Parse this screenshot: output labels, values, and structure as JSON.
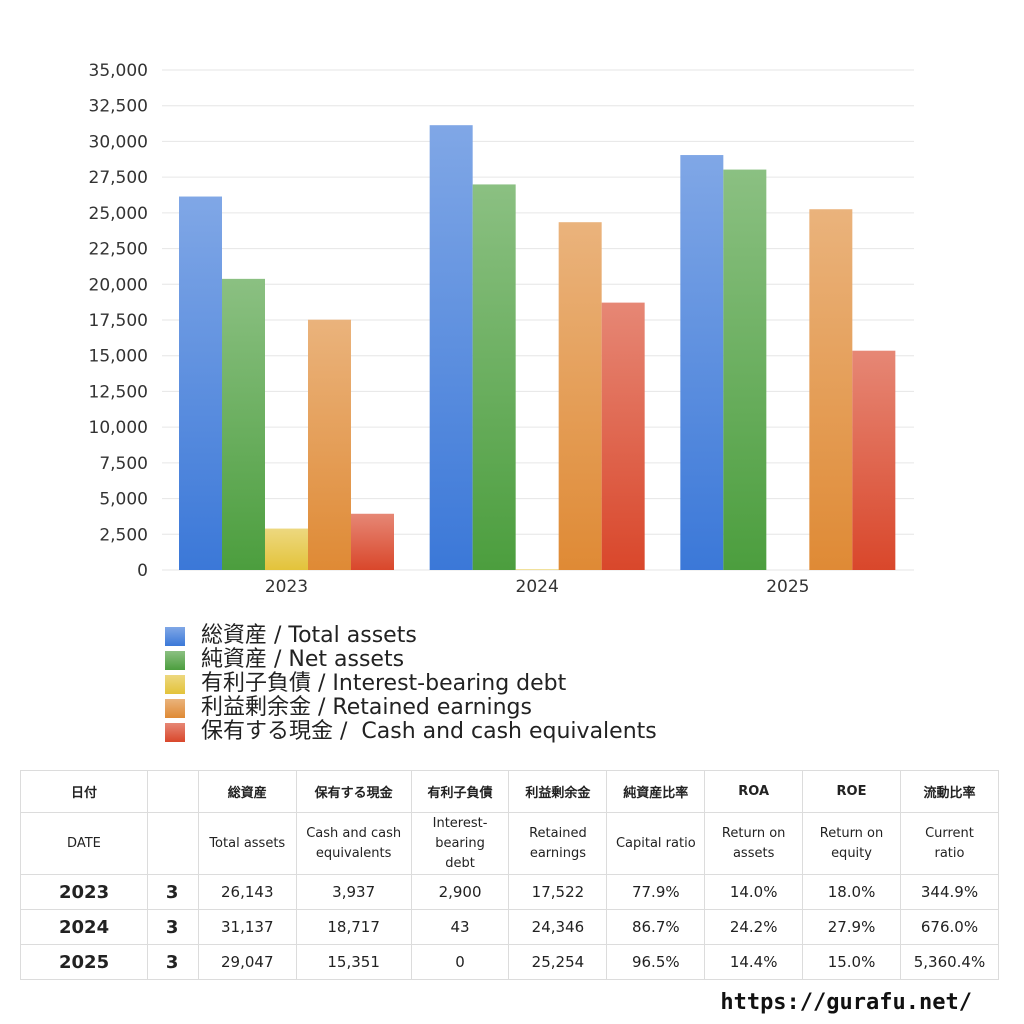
{
  "chart_data": {
    "type": "bar",
    "categories": [
      "2023",
      "2024",
      "2025"
    ],
    "series": [
      {
        "name": "総資産 / Total assets",
        "values": [
          26143,
          31137,
          29047
        ],
        "color": "#3b78d8"
      },
      {
        "name": "純資産 / Net assets",
        "values": [
          20380,
          26990,
          28030
        ],
        "color": "#4c9e3e"
      },
      {
        "name": "有利子負債 / Interest-bearing debt",
        "values": [
          2900,
          43,
          0
        ],
        "color": "#e3c33a"
      },
      {
        "name": "利益剰余金 / Retained earnings",
        "values": [
          17522,
          24346,
          25254
        ],
        "color": "#df8a35"
      },
      {
        "name": "保有する現金 /  Cash and cash equivalents",
        "values": [
          3937,
          18717,
          15351
        ],
        "color": "#d9472b"
      }
    ],
    "yticks": [
      "0",
      "2,500",
      "5,000",
      "7,500",
      "10,000",
      "12,500",
      "15,000",
      "17,500",
      "20,000",
      "22,500",
      "25,000",
      "27,500",
      "30,000",
      "32,500",
      "35,000"
    ],
    "ylim": [
      0,
      35000
    ],
    "grid": true,
    "legend_position": "bottom"
  },
  "table": {
    "header_jp": [
      "日付",
      "",
      "総資産",
      "保有する現金",
      "有利子負債",
      "利益剰余金",
      "純資産比率",
      "ROA",
      "ROE",
      "流動比率"
    ],
    "header_en": [
      "DATE",
      "",
      "Total assets",
      "Cash and cash\nequivalents",
      "Interest-\nbearing\ndebt",
      "Retained\nearnings",
      "Capital ratio",
      "Return on\nassets",
      "Return on\nequity",
      "Current\nratio"
    ],
    "rows": [
      [
        "2023",
        "3",
        "26,143",
        "3,937",
        "2,900",
        "17,522",
        "77.9%",
        "14.0%",
        "18.0%",
        "344.9%"
      ],
      [
        "2024",
        "3",
        "31,137",
        "18,717",
        "43",
        "24,346",
        "86.7%",
        "24.2%",
        "27.9%",
        "676.0%"
      ],
      [
        "2025",
        "3",
        "29,047",
        "15,351",
        "0",
        "25,254",
        "96.5%",
        "14.4%",
        "15.0%",
        "5,360.4%"
      ]
    ]
  },
  "site_url": "https://gurafu.net/"
}
